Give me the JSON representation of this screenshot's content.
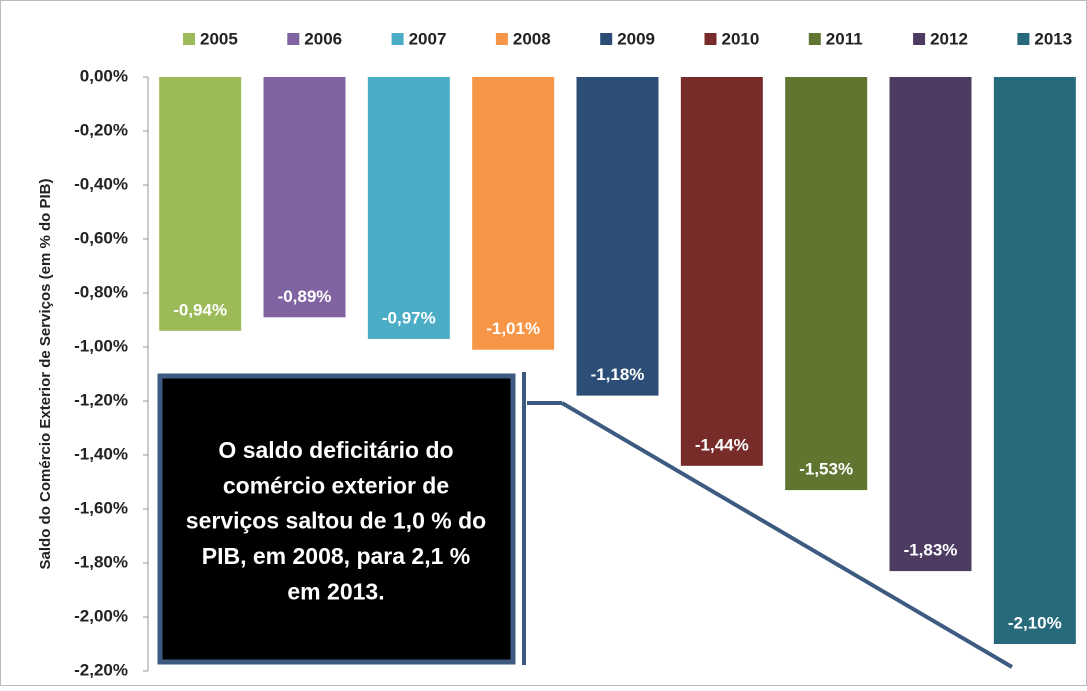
{
  "chart_data": {
    "type": "bar",
    "ylabel": "Saldo do Comércio Exterior de Serviços (em % do PIB)",
    "series": [
      {
        "name": "2005",
        "color": "#9bbb59",
        "values": [
          -0.94
        ],
        "value_labels": [
          "-0,94%"
        ]
      },
      {
        "name": "2006",
        "color": "#8064a2",
        "values": [
          -0.89
        ],
        "value_labels": [
          "-0,89%"
        ]
      },
      {
        "name": "2007",
        "color": "#4bacc6",
        "values": [
          -0.97
        ],
        "value_labels": [
          "-0,97%"
        ]
      },
      {
        "name": "2008",
        "color": "#f79646",
        "values": [
          -1.01
        ],
        "value_labels": [
          "-1,01%"
        ]
      },
      {
        "name": "2009",
        "color": "#2c4d75",
        "values": [
          -1.18
        ],
        "value_labels": [
          "-1,18%"
        ]
      },
      {
        "name": "2010",
        "color": "#772c2a",
        "values": [
          -1.44
        ],
        "value_labels": [
          "-1,44%"
        ]
      },
      {
        "name": "2011",
        "color": "#5f7530",
        "values": [
          -1.53
        ],
        "value_labels": [
          "-1,53%"
        ]
      },
      {
        "name": "2012",
        "color": "#4d3b62",
        "values": [
          -1.83
        ],
        "value_labels": [
          "-1,83%"
        ]
      },
      {
        "name": "2013",
        "color": "#276a7c",
        "values": [
          -2.1
        ],
        "value_labels": [
          "-2,10%"
        ]
      }
    ],
    "ylim": [
      -2.2,
      0
    ],
    "yticks": [
      {
        "value": 0,
        "label": "0,00%"
      },
      {
        "value": -0.2,
        "label": "-0,20%"
      },
      {
        "value": -0.4,
        "label": "-0,40%"
      },
      {
        "value": -0.6,
        "label": "-0,60%"
      },
      {
        "value": -0.8,
        "label": "-0,80%"
      },
      {
        "value": -1.0,
        "label": "-1,00%"
      },
      {
        "value": -1.2,
        "label": "-1,20%"
      },
      {
        "value": -1.4,
        "label": "-1,40%"
      },
      {
        "value": -1.6,
        "label": "-1,60%"
      },
      {
        "value": -1.8,
        "label": "-1,80%"
      },
      {
        "value": -2.0,
        "label": "-2,00%"
      },
      {
        "value": -2.2,
        "label": "-2,20%"
      }
    ],
    "annotation": [
      "O saldo deficitário do",
      "comércio exterior de",
      "serviços saltou de 1,0 % do",
      "PIB, em 2008, para 2,1 %",
      "em 2013."
    ],
    "legend": "top"
  }
}
